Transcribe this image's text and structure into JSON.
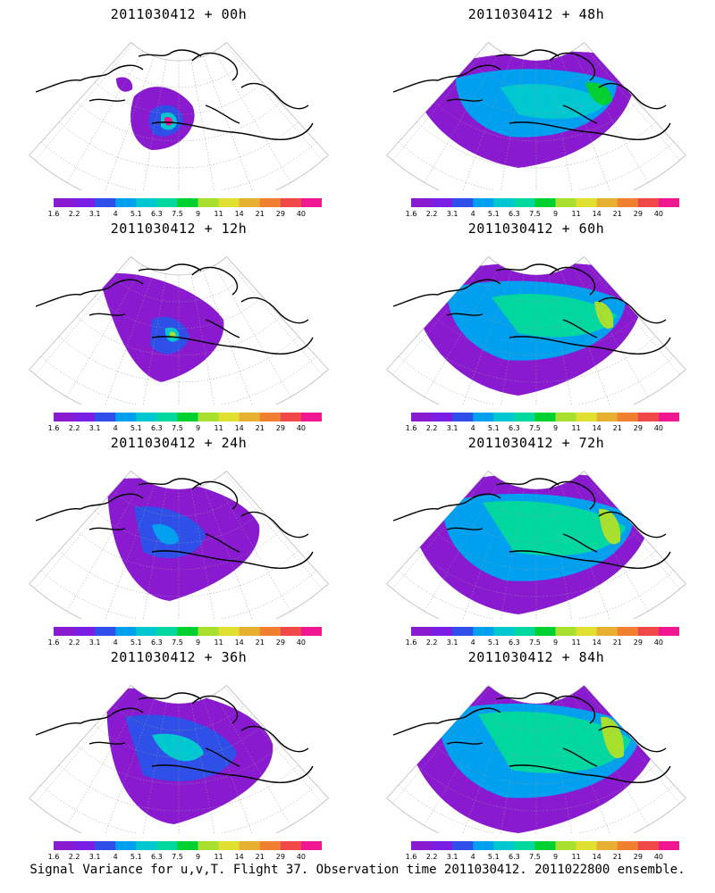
{
  "figure": {
    "footer": "Signal Variance for u,v,T. Flight 37. Observation time 2011030412. 2011022800 ensemble."
  },
  "colorbar": {
    "labels": [
      "1.6",
      "2.2",
      "3.1",
      "4",
      "5.1",
      "6.3",
      "7.5",
      "9",
      "11",
      "14",
      "21",
      "29",
      "40"
    ],
    "colors": [
      "#8a1ad0",
      "#7a1ee6",
      "#2e50e8",
      "#00a0f0",
      "#00c8d0",
      "#00d8a0",
      "#00d030",
      "#a8e030",
      "#e0e030",
      "#e8b030",
      "#f08030",
      "#f04848",
      "#f01890"
    ]
  },
  "panels": [
    {
      "id": "p00",
      "title": "2011030412 + 00h",
      "extent": "small"
    },
    {
      "id": "p48",
      "title": "2011030412 + 48h",
      "extent": "large"
    },
    {
      "id": "p12",
      "title": "2011030412 + 12h",
      "extent": "small2"
    },
    {
      "id": "p60",
      "title": "2011030412 + 60h",
      "extent": "large2"
    },
    {
      "id": "p24",
      "title": "2011030412 + 24h",
      "extent": "medium"
    },
    {
      "id": "p72",
      "title": "2011030412 + 72h",
      "extent": "large3"
    },
    {
      "id": "p36",
      "title": "2011030412 + 36h",
      "extent": "medium2"
    },
    {
      "id": "p84",
      "title": "2011030412 + 84h",
      "extent": "large4"
    }
  ]
}
